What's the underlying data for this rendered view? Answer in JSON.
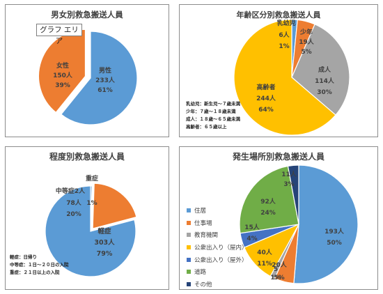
{
  "area_label": "グラフ エリア",
  "chart_data": [
    {
      "type": "pie",
      "title": "男女別救急搬送人員",
      "slices": [
        {
          "name": "男性",
          "count": "233人",
          "pct": "61%",
          "value": 233,
          "color": "#5b9bd5"
        },
        {
          "name": "女性",
          "count": "150人",
          "pct": "39%",
          "value": 150,
          "color": "#ed7d31"
        }
      ]
    },
    {
      "type": "pie",
      "title": "年齢区分別救急搬送人員",
      "slices": [
        {
          "name": "乳幼児",
          "count": "6人",
          "pct": "1%",
          "value": 6,
          "color": "#5b9bd5"
        },
        {
          "name": "少年",
          "count": "19人",
          "pct": "5%",
          "value": 19,
          "color": "#ed7d31"
        },
        {
          "name": "成人",
          "count": "114人",
          "pct": "30%",
          "value": 114,
          "color": "#a5a5a5"
        },
        {
          "name": "高齢者",
          "count": "244人",
          "pct": "64%",
          "value": 244,
          "color": "#ffc000"
        }
      ],
      "notes": [
        "乳幼児：新生児～７歳未満",
        "少年：７歳～１８歳未満",
        "成人：１８歳～６５歳未満",
        "高齢者：６５歳以上"
      ]
    },
    {
      "type": "pie",
      "title": "程度別救急搬送人員",
      "slices": [
        {
          "name": "重症",
          "count": "2人",
          "pct": "1%",
          "value": 2,
          "color": "#5b9bd5"
        },
        {
          "name": "中等症",
          "count": "78人",
          "pct": "20%",
          "value": 78,
          "color": "#ed7d31"
        },
        {
          "name": "軽症",
          "count": "303人",
          "pct": "79%",
          "value": 303,
          "color": "#5b9bd5"
        }
      ],
      "notes": [
        "軽症：日帰り",
        "中等症：１日～２０日の入院",
        "重症：２１日以上の入院"
      ]
    },
    {
      "type": "pie",
      "title": "発生場所別救急搬送人員",
      "slices": [
        {
          "name": "住居",
          "count": "193人",
          "pct": "50%",
          "value": 193,
          "color": "#5b9bd5"
        },
        {
          "name": "仕事場",
          "count": "20人",
          "pct": "5%",
          "value": 20,
          "color": "#ed7d31"
        },
        {
          "name": "教育機関",
          "count": "",
          "pct": "",
          "value": 5,
          "color": "#a5a5a5"
        },
        {
          "name": "公衆出入り（屋内）",
          "count": "40人",
          "pct": "11%",
          "value": 40,
          "color": "#ffc000"
        },
        {
          "name": "公衆出入り（屋外）",
          "count": "15人",
          "pct": "4%",
          "value": 15,
          "color": "#4472c4"
        },
        {
          "name": "道路",
          "count": "92人",
          "pct": "24%",
          "value": 92,
          "color": "#70ad47"
        },
        {
          "name": "その他",
          "count": "11人",
          "pct": "3%",
          "value": 11,
          "color": "#264478"
        }
      ],
      "extra_labels": [
        "5",
        "1%"
      ]
    }
  ]
}
